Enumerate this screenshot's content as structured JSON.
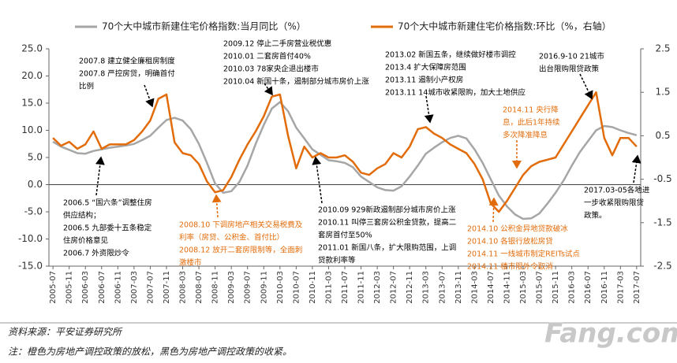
{
  "chart_data": {
    "type": "line",
    "legend_position": "top",
    "categories": [
      "2005-07",
      null,
      "2005-11",
      null,
      "2006-03",
      null,
      "2006-07",
      null,
      "2006-11",
      null,
      "2007-03",
      null,
      "2007-07",
      null,
      "2007-11",
      null,
      "2008-03",
      null,
      "2008-07",
      null,
      "2008-11",
      null,
      "2009-03",
      null,
      "2009-07",
      null,
      "2009-11",
      null,
      "2010-03",
      null,
      "2010-07",
      null,
      "2010-11",
      null,
      "2011-03",
      null,
      "2011-07",
      null,
      "2011-11",
      null,
      "2012-03",
      null,
      "2012-07",
      null,
      "2012-11",
      null,
      "2013-03",
      null,
      "2013-07",
      null,
      "2013-11",
      null,
      "2014-03",
      null,
      "2014-07",
      null,
      "2014-11",
      null,
      "2015-03",
      null,
      "2015-07",
      null,
      "2015-11",
      null,
      "2016-03",
      null,
      "2016-07",
      null,
      "2016-11",
      null,
      "2017-03",
      null,
      "2017-07"
    ],
    "series": [
      {
        "name": "70个大中城市新建住宅价格指数:当月同比（%）",
        "color": "#a6a6a6",
        "axis": "y",
        "values": [
          7.9,
          7.0,
          6.4,
          5.8,
          5.7,
          6.2,
          6.5,
          6.8,
          7.0,
          7.2,
          7.5,
          8.2,
          9.0,
          10.5,
          11.9,
          12.3,
          11.8,
          10.2,
          7.5,
          4.0,
          0.2,
          -1.5,
          -1.2,
          0.5,
          3.5,
          7.5,
          11.0,
          14.0,
          15.2,
          13.5,
          10.5,
          8.5,
          6.5,
          5.5,
          4.5,
          4.3,
          4.0,
          3.2,
          1.5,
          0.5,
          -0.5,
          -1.0,
          -1.1,
          -0.3,
          1.5,
          3.5,
          5.7,
          6.8,
          7.8,
          8.6,
          9.0,
          8.5,
          6.5,
          4.0,
          1.0,
          -2.0,
          -4.0,
          -5.5,
          -6.3,
          -6.2,
          -5.3,
          -3.5,
          -1.5,
          0.8,
          3.5,
          6.0,
          8.0,
          10.0,
          10.8,
          10.6,
          10.0,
          9.5,
          9.1
        ]
      },
      {
        "name": "70个大中城市新建住宅价格指数:环比（%，右轴）",
        "color": "#e36c0a",
        "axis": "y2",
        "values": [
          0.45,
          0.27,
          0.36,
          0.2,
          0.3,
          0.6,
          0.2,
          0.3,
          0.3,
          0.3,
          0.4,
          0.6,
          0.85,
          1.35,
          1.45,
          0.35,
          0.1,
          0.05,
          -0.15,
          -0.55,
          -0.8,
          -0.75,
          -0.45,
          -0.05,
          0.3,
          0.6,
          0.95,
          1.4,
          1.45,
          0.5,
          -0.25,
          0.25,
          0,
          0.1,
          0,
          0,
          0.05,
          -0.1,
          -0.35,
          -0.4,
          -0.25,
          -0.15,
          0.1,
          0,
          0.25,
          0.65,
          0.7,
          0.55,
          0.45,
          0.3,
          0.2,
          0.1,
          -0.15,
          -0.5,
          -1.05,
          -1.25,
          -1.0,
          -0.7,
          -0.4,
          -0.2,
          -0.1,
          -0.05,
          0.0,
          0.3,
          0.6,
          0.9,
          1.2,
          1.5,
          0.45,
          0.05,
          0.45,
          0.45,
          0.25
        ]
      }
    ],
    "ylim": [
      -15,
      25
    ],
    "yticks": [
      {
        "value": -15,
        "label": "-15.0"
      },
      {
        "value": -10,
        "label": "-10.0"
      },
      {
        "value": -5,
        "label": "-5.0"
      },
      {
        "value": 0,
        "label": "0.0"
      },
      {
        "value": 5,
        "label": "5.0"
      },
      {
        "value": 10,
        "label": "10.0"
      },
      {
        "value": 15,
        "label": "15.0"
      },
      {
        "value": 20,
        "label": "20.0"
      },
      {
        "value": 25,
        "label": "25.0"
      }
    ],
    "y2lim": [
      -2.5,
      2.5
    ],
    "y2ticks": [
      -2.5,
      -1.5,
      -0.5,
      0.5,
      1.5,
      2.5
    ],
    "grid": false,
    "annotations": [
      {
        "color": "#000000",
        "lines": [
          "2007.8  建立健全廉租房制度",
          "2007.8  严控房贷，明确首付",
          "比例"
        ]
      },
      {
        "color": "#000000",
        "lines": [
          "2009.12 停止二手房营业税优惠",
          "2010.01 二套房首付40%",
          "2010.03 78家央企退出楼市",
          "2010.04 新国十条，遏制部分城市房价上涨"
        ]
      },
      {
        "color": "#000000",
        "lines": [
          "2013.02 新国五条，继续做好楼市调控",
          "2013.4 扩大保障房范围",
          "2013.11 遏制小产权房",
          "2013.11 14城市收紧限购，加大土地供应"
        ]
      },
      {
        "color": "#000000",
        "lines": [
          "2016.9-10 21城市",
          "出台限购限贷政策"
        ]
      },
      {
        "color": "#e36c0a",
        "lines": [
          "2014.11 央行降",
          "息，此后1年持续",
          "多次降准降息"
        ]
      },
      {
        "color": "#000000",
        "lines": [
          "2006.5 “国六条”调整住房",
          "供应结构；",
          "2006.5  九部委十五条稳定",
          "住房价格意见",
          "2006.7  外资限炒令"
        ]
      },
      {
        "color": "#e36c0a",
        "lines": [
          "2008.10 下调房地产相关交易税费及",
          "利率（房贷、公积金、首付比）",
          "2008.12 放开二套房限制等，全面刺",
          "激楼市"
        ]
      },
      {
        "color": "#000000",
        "lines": [
          "2010.09 929新政遏制部分城市房价上涨",
          "2010.11 叫停三套房公积金贷款，提高二",
          "套房首付至50%",
          "2011.01 新国八条，扩大限购范围，上调",
          "贷款利率等"
        ]
      },
      {
        "color": "#e36c0a",
        "lines": [
          "2014.10 公积金异地贷款破冰",
          "2014.10 各银行放松房贷",
          "2014.11 一线城市制定REITs试点",
          "2014.11 楼市限外令取消"
        ]
      },
      {
        "color": "#000000",
        "lines": [
          "2017.03-05各地进",
          "一步收紧限购限贷",
          "政策。"
        ]
      }
    ]
  },
  "source": "资料来源：平安证券研究所",
  "note": "注：橙色为房地产调控政策的放松，黑色为房地产调控政策的收紧。",
  "watermark": "Fang.com"
}
